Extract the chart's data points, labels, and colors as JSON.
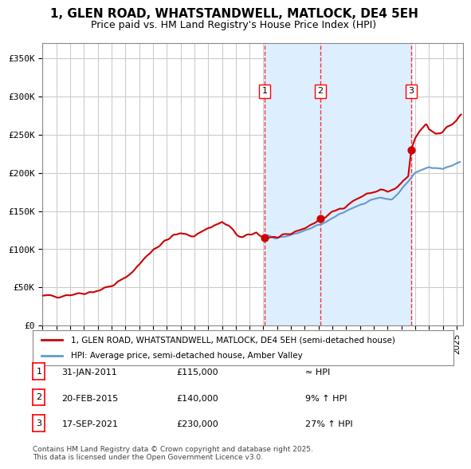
{
  "title": "1, GLEN ROAD, WHATSTANDWELL, MATLOCK, DE4 5EH",
  "subtitle": "Price paid vs. HM Land Registry's House Price Index (HPI)",
  "transactions": [
    {
      "num": 1,
      "date": "31-JAN-2011",
      "year": 2011.08,
      "price": 115000,
      "vs_hpi": "≈ HPI"
    },
    {
      "num": 2,
      "date": "20-FEB-2015",
      "year": 2015.13,
      "price": 140000,
      "vs_hpi": "9% ↑ HPI"
    },
    {
      "num": 3,
      "date": "17-SEP-2021",
      "year": 2021.72,
      "price": 230000,
      "vs_hpi": "27% ↑ HPI"
    }
  ],
  "ylabel_ticks": [
    "£0",
    "£50K",
    "£100K",
    "£150K",
    "£200K",
    "£250K",
    "£300K",
    "£350K"
  ],
  "ytick_vals": [
    0,
    50000,
    100000,
    150000,
    200000,
    250000,
    300000,
    350000
  ],
  "ylim": [
    0,
    370000
  ],
  "xlim_start": 1995,
  "xlim_end": 2025.5,
  "legend_line1": "1, GLEN ROAD, WHATSTANDWELL, MATLOCK, DE4 5EH (semi-detached house)",
  "legend_line2": "HPI: Average price, semi-detached house, Amber Valley",
  "footnote": "Contains HM Land Registry data © Crown copyright and database right 2025.\nThis data is licensed under the Open Government Licence v3.0.",
  "line_color_price": "#cc0000",
  "line_color_hpi": "#6699cc",
  "shade_color": "#ddeeff",
  "grid_color": "#cccccc",
  "background_color": "#ffffff"
}
